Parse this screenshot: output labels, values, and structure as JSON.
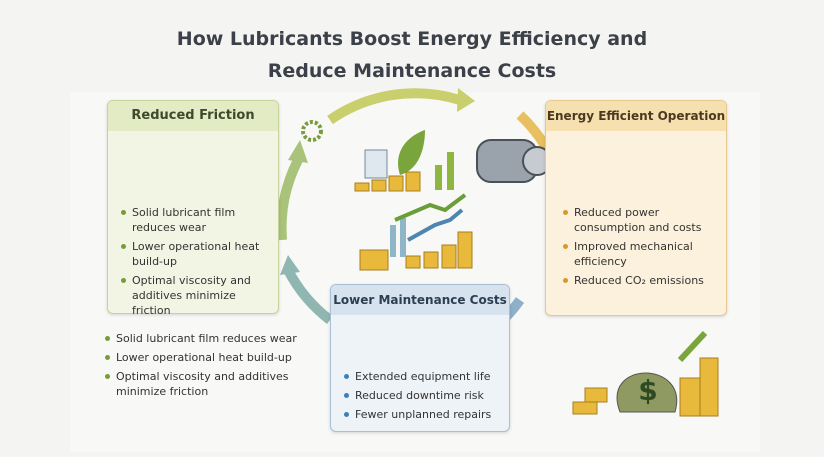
{
  "header": {
    "title_lines": [
      "How Lubricants Boost Energy Efficiency and",
      "Reduce Maintenance Costs"
    ]
  },
  "panels": [
    {
      "title": "Reduced Friction",
      "bullets": [
        "Solid lubricant film reduces wear",
        "Lower operational heat build-up",
        "Optimal viscosity and additives minimize friction"
      ]
    },
    {
      "title": "Energy Efficient Operation",
      "bullets": [
        "Reduced power consumption and costs",
        "Improved mechanical efficiency",
        "Reduced CO₂ emissions"
      ]
    },
    {
      "title": "Lower Maintenance Costs",
      "bullets": [
        "Extended equipment life",
        "Reduced downtime risk",
        "Fewer unplanned repairs"
      ]
    }
  ],
  "summary": {
    "bullets": [
      "Solid lubricant film reduces wear",
      "Lower operational heat build-up",
      "Optimal viscosity and additives minimize friction"
    ]
  }
}
